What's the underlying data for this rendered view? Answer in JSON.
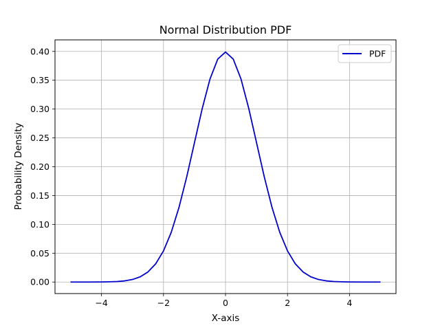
{
  "chart_data": {
    "type": "line",
    "title": "Normal Distribution PDF",
    "xlabel": "X-axis",
    "ylabel": "Probability Density",
    "xlim": [
      -5.5,
      5.5
    ],
    "ylim": [
      -0.02,
      0.42
    ],
    "grid": true,
    "legend_position": "top-right",
    "x_ticks": [
      -4,
      -2,
      0,
      2,
      4
    ],
    "x_tick_labels": [
      "−4",
      "−2",
      "0",
      "2",
      "4"
    ],
    "y_ticks": [
      0.0,
      0.05,
      0.1,
      0.15,
      0.2,
      0.25,
      0.3,
      0.35,
      0.4
    ],
    "y_tick_labels": [
      "0.00",
      "0.05",
      "0.10",
      "0.15",
      "0.20",
      "0.25",
      "0.30",
      "0.35",
      "0.40"
    ],
    "series": [
      {
        "name": "PDF",
        "color": "#0000cc",
        "x": [
          -5.0,
          -4.5,
          -4.0,
          -3.75,
          -3.5,
          -3.25,
          -3.0,
          -2.75,
          -2.5,
          -2.25,
          -2.0,
          -1.75,
          -1.5,
          -1.25,
          -1.0,
          -0.75,
          -0.5,
          -0.25,
          0.0,
          0.25,
          0.5,
          0.75,
          1.0,
          1.25,
          1.5,
          1.75,
          2.0,
          2.25,
          2.5,
          2.75,
          3.0,
          3.25,
          3.5,
          3.75,
          4.0,
          4.5,
          5.0
        ],
        "y": [
          0.0,
          0.0,
          0.0001,
          0.0004,
          0.0009,
          0.002,
          0.0044,
          0.0091,
          0.0175,
          0.0317,
          0.054,
          0.0863,
          0.1295,
          0.1826,
          0.242,
          0.3011,
          0.3521,
          0.3867,
          0.3989,
          0.3867,
          0.3521,
          0.3011,
          0.242,
          0.1826,
          0.1295,
          0.0863,
          0.054,
          0.0317,
          0.0175,
          0.0091,
          0.0044,
          0.002,
          0.0009,
          0.0004,
          0.0001,
          0.0,
          0.0
        ]
      }
    ]
  }
}
